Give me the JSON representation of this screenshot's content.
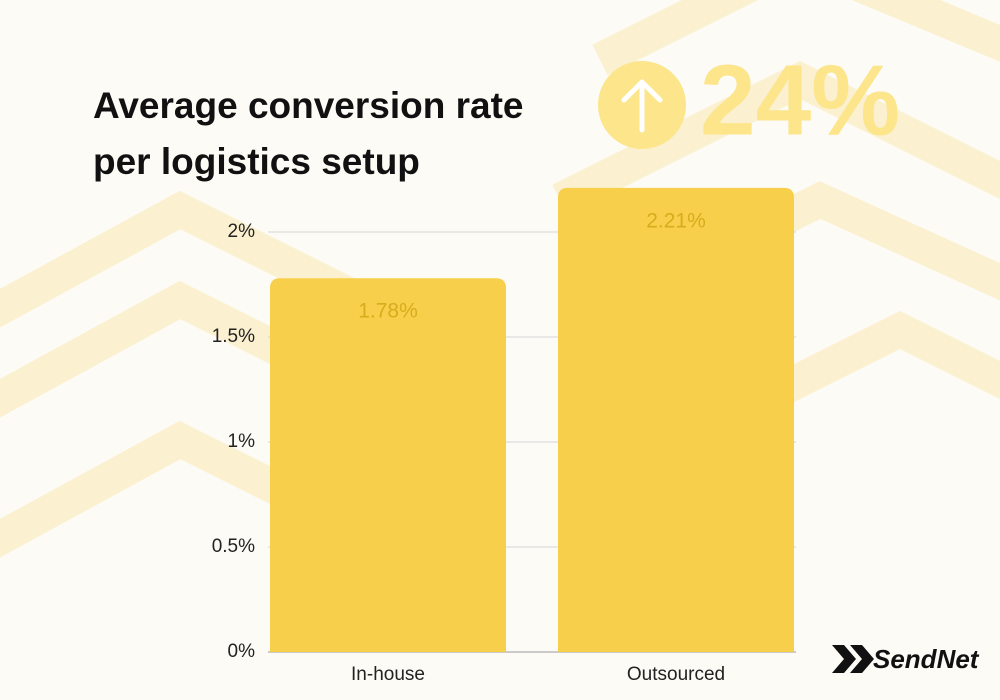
{
  "chart_data": {
    "type": "bar",
    "title": "Average conversion rate per logistics setup",
    "annotation": "24%",
    "brand": "SendNet",
    "categories": [
      "In-house",
      "Outsourced"
    ],
    "values": [
      1.78,
      2.21
    ],
    "value_labels": [
      "1.78%",
      "2.21%"
    ],
    "color": "#f8cf4a",
    "ylim": [
      0,
      2
    ],
    "yticks": [
      {
        "value": 0,
        "label": "0%"
      },
      {
        "value": 0.5,
        "label": "0.5%"
      },
      {
        "value": 1,
        "label": "1%"
      },
      {
        "value": 1.5,
        "label": "1.5%"
      },
      {
        "value": 2,
        "label": "2%"
      }
    ],
    "grid": true
  }
}
